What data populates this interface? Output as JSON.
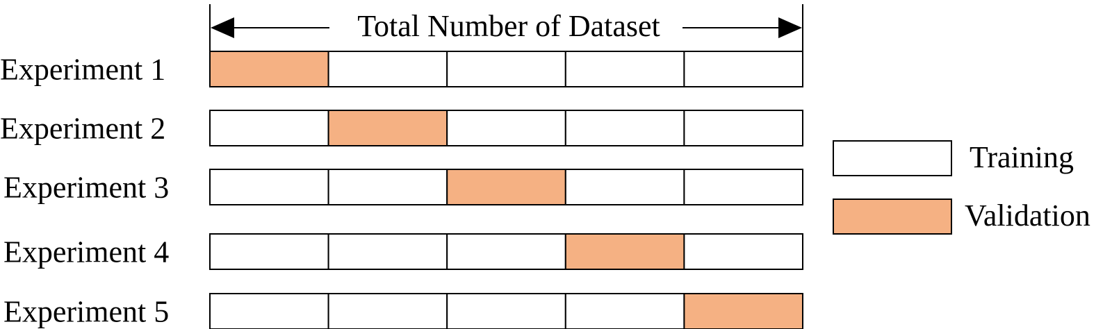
{
  "header": {
    "span_label": "Total Number of Dataset"
  },
  "experiments": [
    {
      "label": "Experiment 1",
      "validation_fold": 1
    },
    {
      "label": "Experiment 2",
      "validation_fold": 2
    },
    {
      "label": "Experiment 3",
      "validation_fold": 3
    },
    {
      "label": "Experiment 4",
      "validation_fold": 4
    },
    {
      "label": "Experiment 5",
      "validation_fold": 5
    }
  ],
  "folds_per_experiment": 5,
  "legend": {
    "training": {
      "label": "Training",
      "color": "#ffffff"
    },
    "validation": {
      "label": "Validation",
      "color": "#f5b183"
    }
  },
  "colors": {
    "stroke": "#000000"
  }
}
